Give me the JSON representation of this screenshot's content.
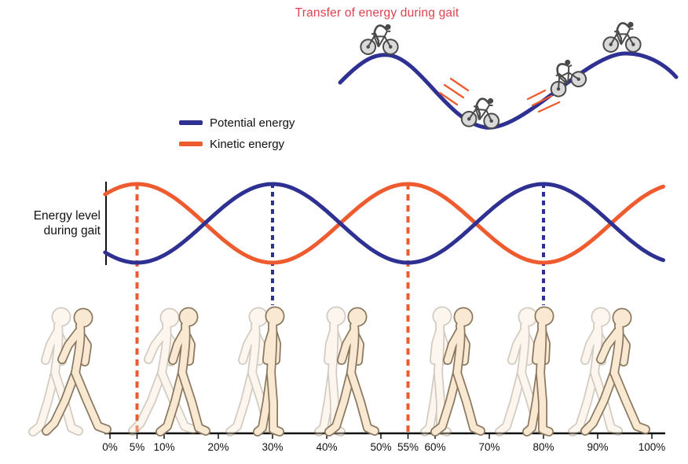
{
  "title": "Transfer of energy during gait",
  "colors": {
    "title": "#e04150",
    "potential_energy": "#2e3192",
    "kinetic_energy": "#ee5b2e",
    "figure_fill": "#f9e9d3",
    "figure_outline": "#8a795f"
  },
  "legend": {
    "items": [
      {
        "id": "potential",
        "label": "Potential energy",
        "color": "#2e3192"
      },
      {
        "id": "kinetic",
        "label": "Kinetic energy",
        "color": "#ee5b2e"
      }
    ]
  },
  "y_axis": {
    "label_line1": "Energy level",
    "label_line2": "during gait"
  },
  "illustration": {
    "hill": "rolling-hills-with-bicycles",
    "bicycles": 4,
    "speed_line_groups": 2,
    "walking_figures": 7,
    "walking_figure_ghosts": 7
  },
  "chart_data": {
    "type": "line",
    "title": "Transfer of energy during gait",
    "ylabel": "Energy level during gait",
    "x_range": [
      0,
      100
    ],
    "grid": false,
    "legend_position": "above-left",
    "x_ticks": [
      {
        "value": 0,
        "label": "0%"
      },
      {
        "value": 5,
        "label": "5%"
      },
      {
        "value": 10,
        "label": "10%"
      },
      {
        "value": 20,
        "label": "20%"
      },
      {
        "value": 30,
        "label": "30%"
      },
      {
        "value": 40,
        "label": "40%"
      },
      {
        "value": 50,
        "label": "50%"
      },
      {
        "value": 55,
        "label": "55%"
      },
      {
        "value": 60,
        "label": "60%"
      },
      {
        "value": 70,
        "label": "70%"
      },
      {
        "value": 80,
        "label": "80%"
      },
      {
        "value": 90,
        "label": "90%"
      },
      {
        "value": 100,
        "label": "100%"
      }
    ],
    "series": [
      {
        "name": "Kinetic energy",
        "color": "#ee5b2e",
        "shape": "cosine",
        "period": 50,
        "peak_at": 5,
        "peaks_at_percent": [
          5,
          55
        ],
        "troughs_at_percent": [
          30,
          80
        ]
      },
      {
        "name": "Potential energy",
        "color": "#2e3192",
        "shape": "cosine",
        "period": 50,
        "peak_at": 30,
        "peaks_at_percent": [
          30,
          80
        ],
        "troughs_at_percent": [
          5,
          55
        ]
      }
    ],
    "markers": [
      {
        "type": "vline-dashed",
        "series": "Kinetic energy",
        "color": "#ee5b2e",
        "at_percent": [
          5,
          55
        ],
        "extends_to": "x-axis",
        "width": 4,
        "dash": "8 6"
      },
      {
        "type": "vline-dashed",
        "series": "Potential energy",
        "color": "#2e3192",
        "at_percent": [
          30,
          80
        ],
        "extends_to": "figure-heads",
        "width": 4,
        "dash": "6 5"
      }
    ]
  }
}
